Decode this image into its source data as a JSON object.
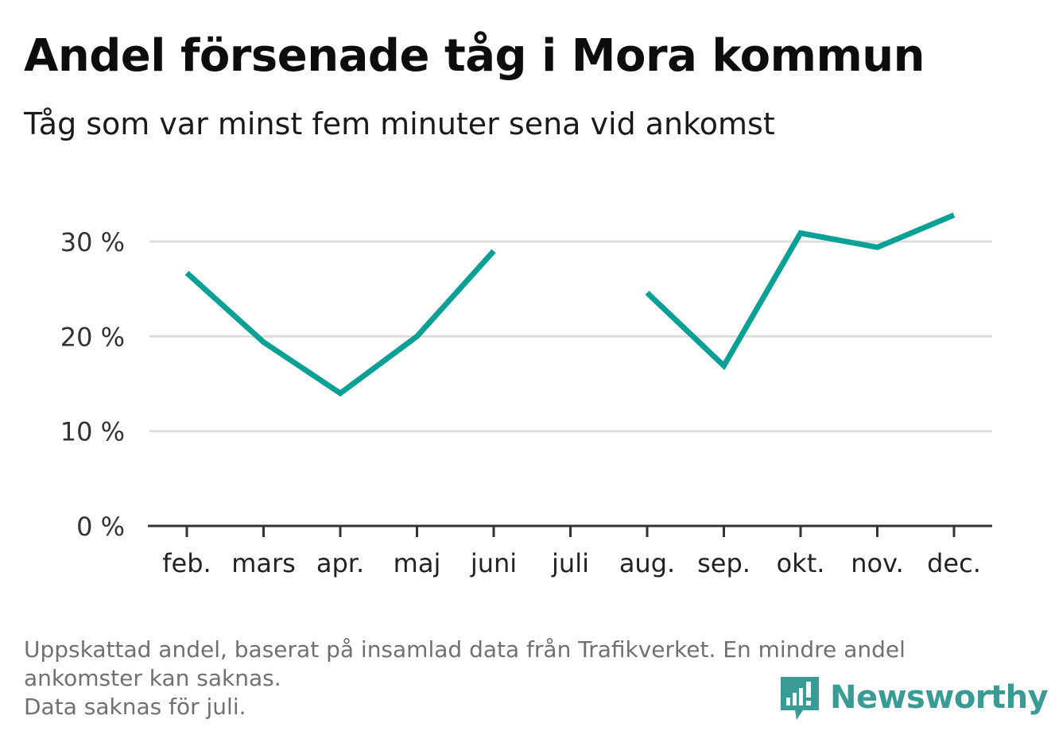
{
  "header": {
    "title": "Andel försenade tåg i Mora kommun",
    "subtitle": "Tåg som var minst fem minuter sena vid ankomst"
  },
  "footer": {
    "note_lines": [
      "Uppskattad andel, baserat på insamlad data från Trafikverket. En mindre andel",
      "ankomster kan saknas.",
      "Data saknas för juli."
    ],
    "brand": "Newsworthy",
    "brand_icon": "bar-chart-speech-bubble-icon"
  },
  "colors": {
    "line": "#0aa095",
    "grid": "#dddddd",
    "axis": "#333333",
    "brand": "#3a9a94"
  },
  "chart_data": {
    "type": "line",
    "categories": [
      "feb.",
      "mars",
      "apr.",
      "maj",
      "juni",
      "juli",
      "aug.",
      "sep.",
      "okt.",
      "nov.",
      "dec."
    ],
    "series": [
      {
        "values": [
          26.7,
          19.4,
          14.0,
          20.0,
          29.0,
          null,
          24.6,
          16.9,
          30.9,
          29.4,
          32.8
        ]
      }
    ],
    "yticks": [
      0,
      10,
      20,
      30
    ],
    "ytick_labels": [
      "0 %",
      "10 %",
      "20 %",
      "30 %"
    ],
    "ylim": [
      0,
      35
    ],
    "grid": true,
    "legend": "none"
  }
}
